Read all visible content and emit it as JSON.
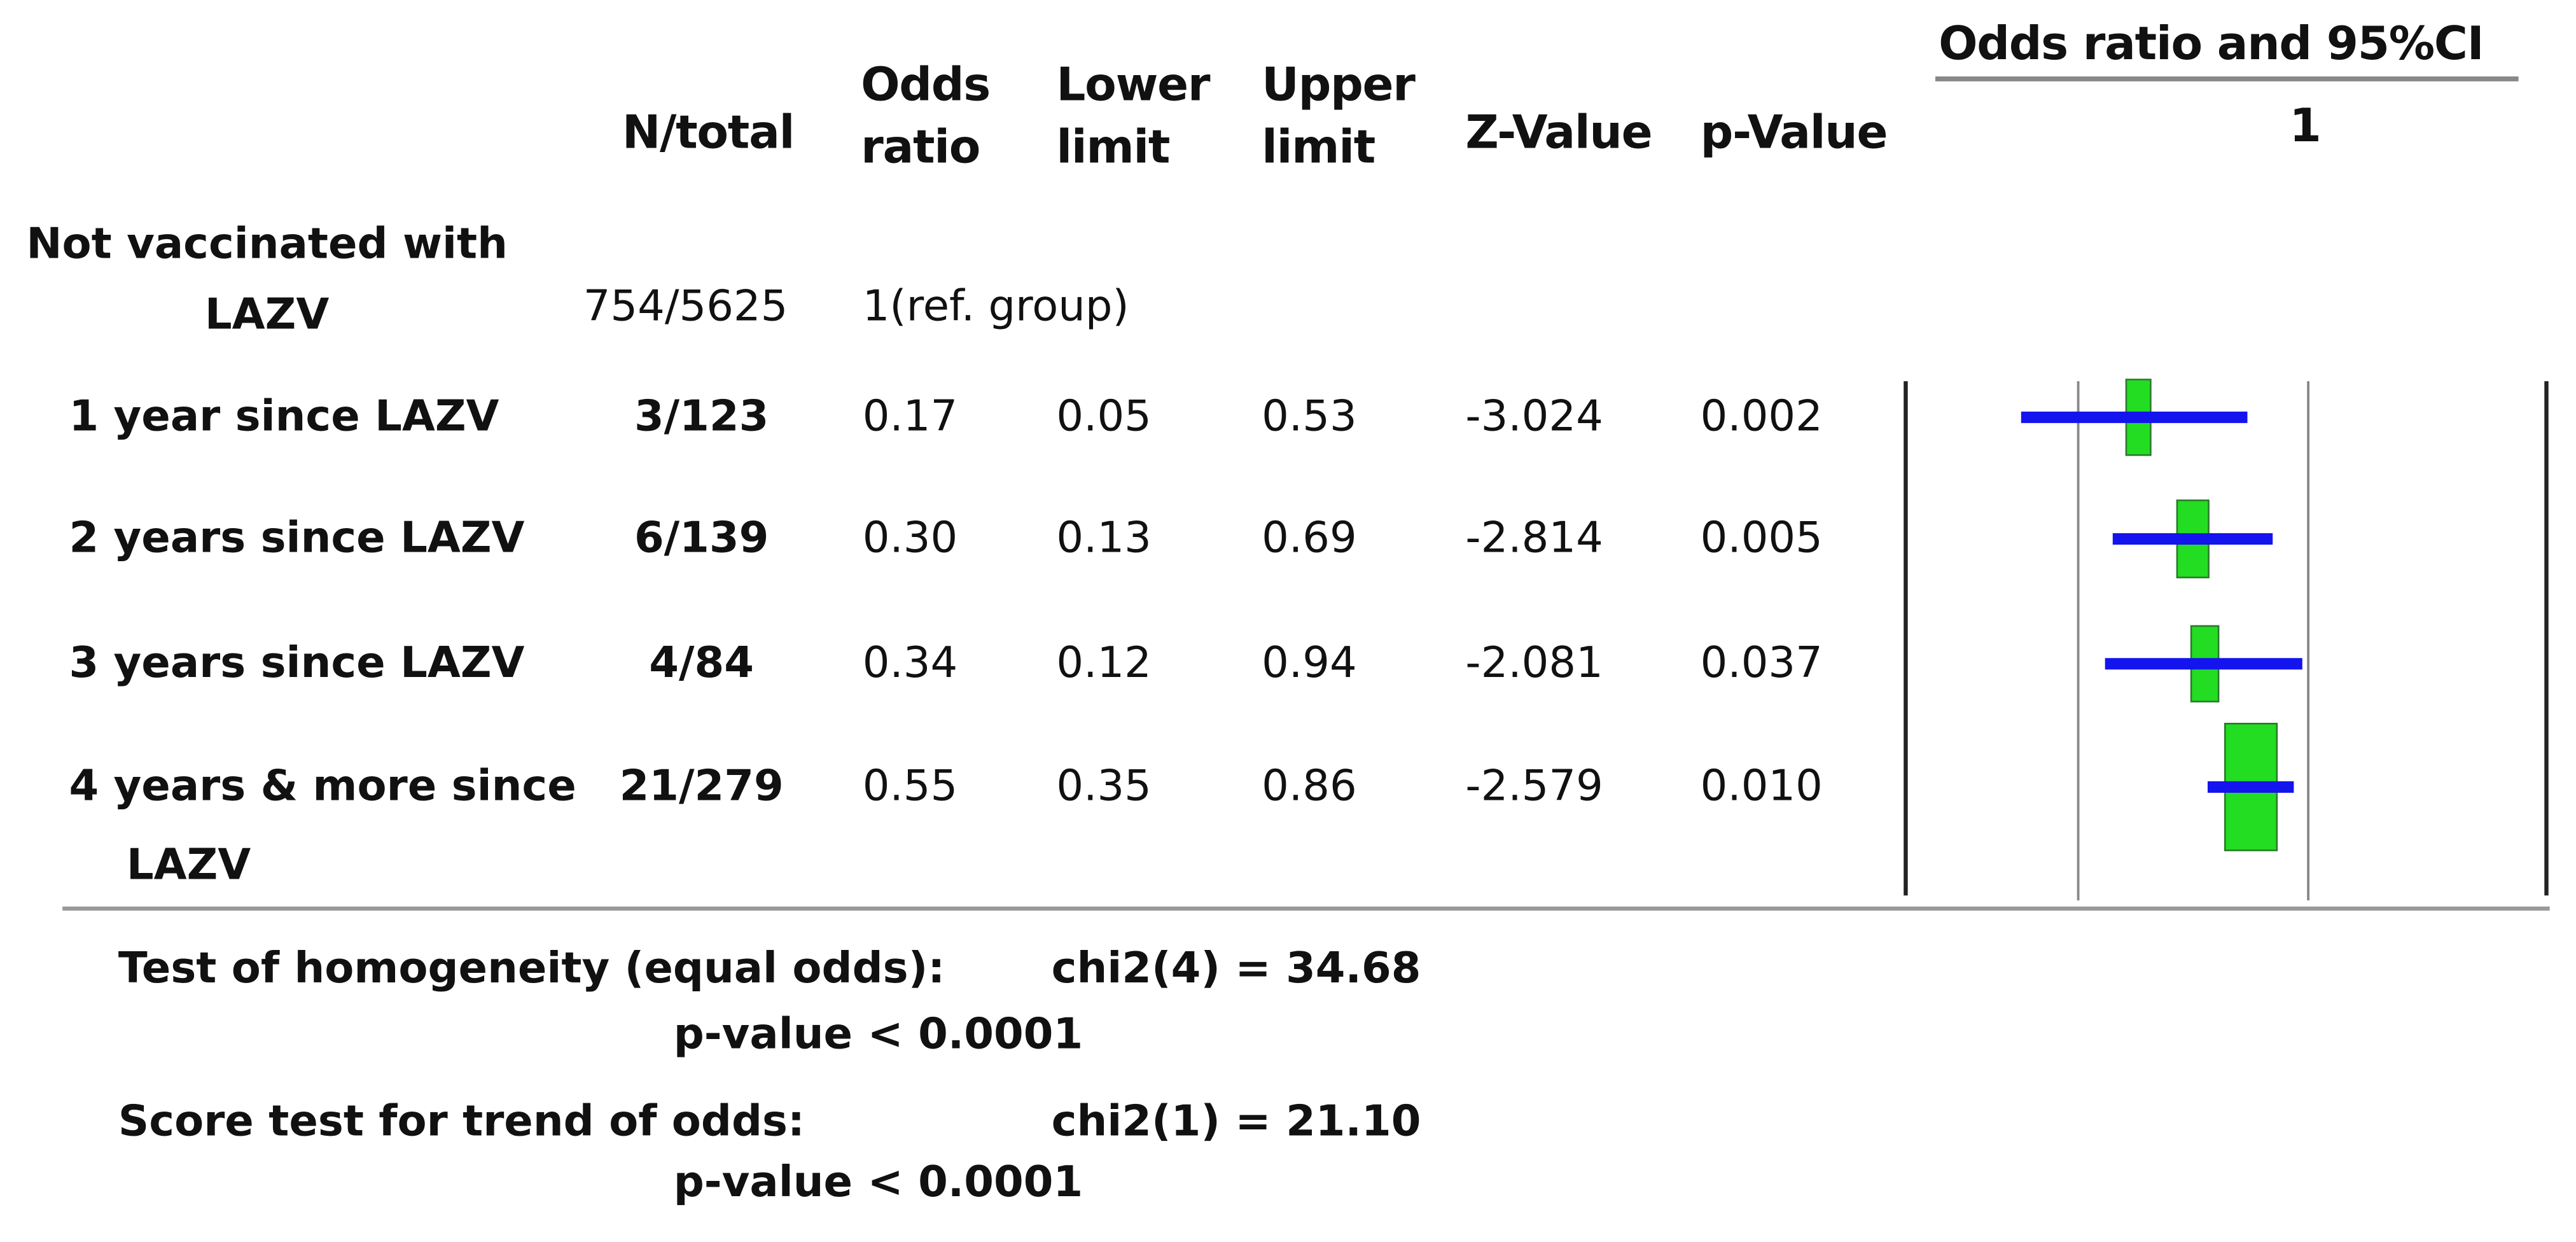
{
  "chart_data": {
    "type": "forest",
    "title": "Odds ratio and 95%CI",
    "columns": [
      "N/total",
      "Odds ratio",
      "Lower limit",
      "Upper limit",
      "Z-Value",
      "p-Value"
    ],
    "reference": {
      "label": "Not vaccinated with LAZV",
      "n_total": "754/5625",
      "note": "1(ref. group)"
    },
    "categories": [
      "1 year since LAZV",
      "2 years since LAZV",
      "3 years since LAZV",
      "4 years & more since LAZV"
    ],
    "n_total": [
      "3/123",
      "6/139",
      "4/84",
      "21/279"
    ],
    "values": [
      0.17,
      0.3,
      0.34,
      0.55
    ],
    "value_labels": [
      "0.17",
      "0.30",
      "0.34",
      "0.55"
    ],
    "lower": [
      0.05,
      0.13,
      0.12,
      0.35
    ],
    "lower_labels": [
      "0.05",
      "0.13",
      "0.12",
      "0.35"
    ],
    "upper": [
      0.53,
      0.69,
      0.94,
      0.86
    ],
    "upper_labels": [
      "0.53",
      "0.69",
      "0.94",
      "0.86"
    ],
    "z_values": [
      "-3.024",
      "-2.814",
      "-2.081",
      "-2.579"
    ],
    "p_values": [
      "0.002",
      "0.005",
      "0.037",
      "0.010"
    ],
    "weights": [
      12,
      20,
      15,
      54
    ],
    "box_color": "#22dd22",
    "ci_color": "#1414ee",
    "log_scale": true,
    "xlim": [
      0.015,
      12
    ],
    "xticks": [
      1
    ],
    "tests": [
      {
        "name": "Test of homogeneity (equal odds):",
        "statistic": "chi2(4) = 34.68",
        "p_value": "p-value < 0.0001"
      },
      {
        "name": "Score test for trend of odds:",
        "statistic": "chi2(1) = 21.10",
        "p_value": "p-value < 0.0001"
      }
    ]
  }
}
